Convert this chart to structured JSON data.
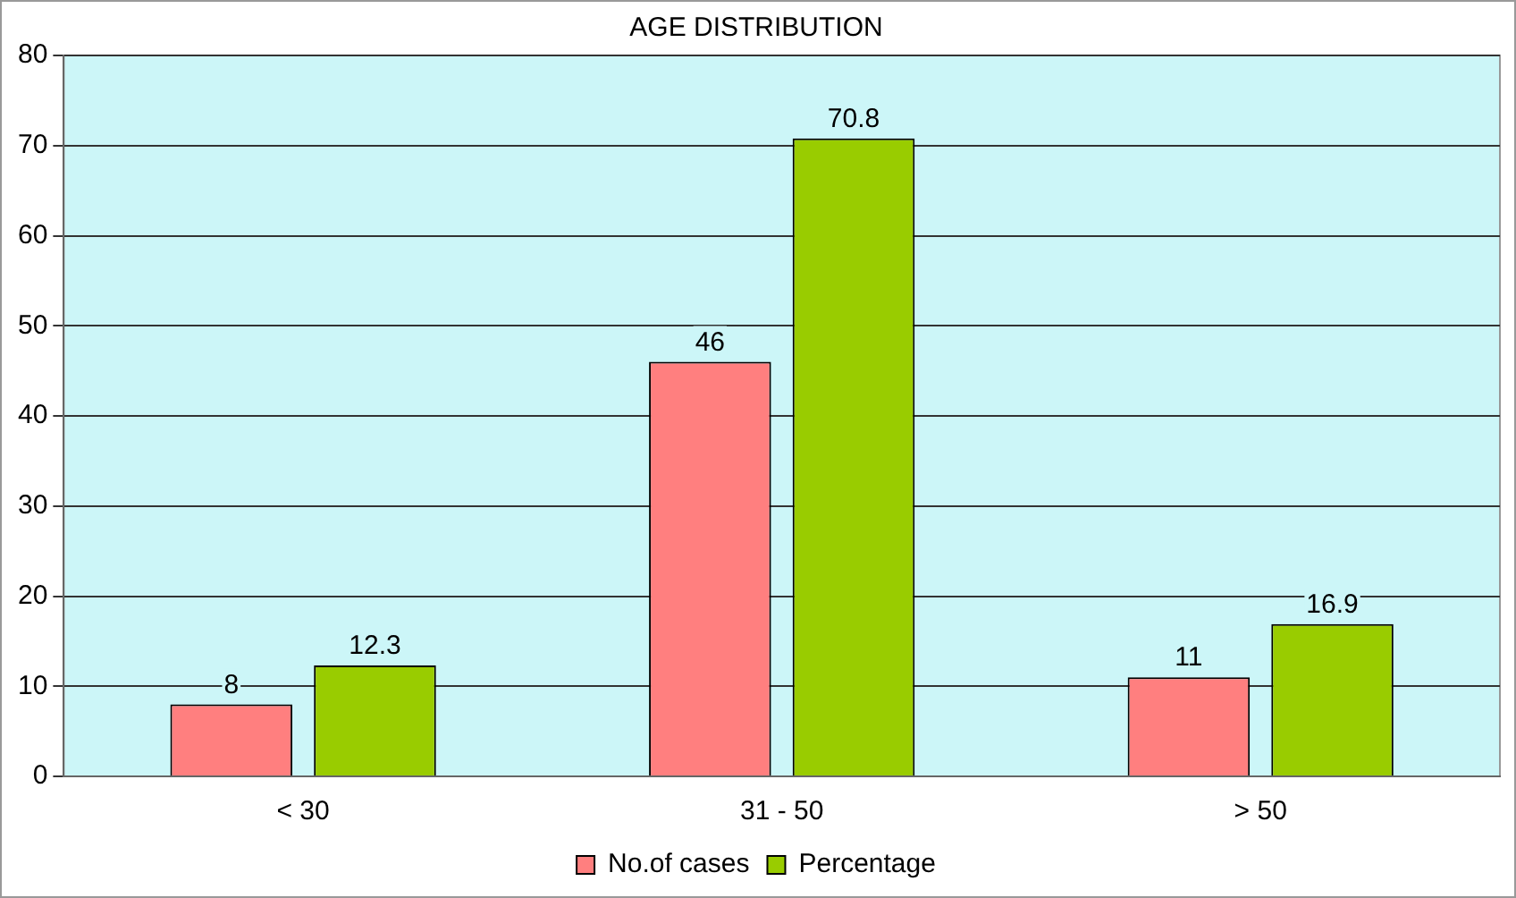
{
  "chart_data": {
    "type": "bar",
    "title": "AGE DISTRIBUTION",
    "categories": [
      "< 30",
      "31 - 50",
      "> 50"
    ],
    "series": [
      {
        "name": "No.of cases",
        "color": "#ff7f7f",
        "values": [
          8,
          46,
          11
        ]
      },
      {
        "name": "Percentage",
        "color": "#99cc00",
        "values": [
          12.3,
          70.8,
          16.9
        ]
      }
    ],
    "ylim": [
      0,
      80
    ],
    "yticks": [
      0,
      10,
      20,
      30,
      40,
      50,
      60,
      70,
      80
    ],
    "grid": "y",
    "legend": "bottom",
    "data_labels": true
  }
}
